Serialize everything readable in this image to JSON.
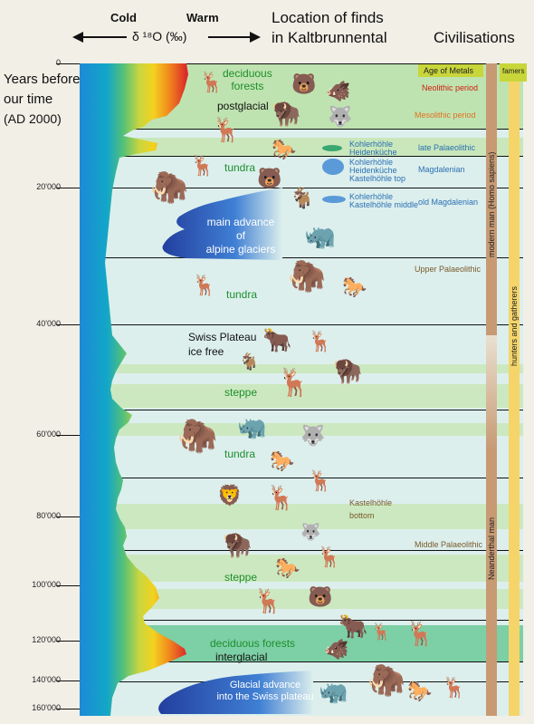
{
  "header": {
    "cold": "Cold",
    "warm": "Warm",
    "isotope": "δ ¹⁸O (‰)",
    "location_line1": "Location of finds",
    "location_line2": "in Kaltbrunnental",
    "civilisations": "Civilisations"
  },
  "y_axis": {
    "title_line1": "Years before",
    "title_line2": "our time",
    "title_line3": "(AD 2000)",
    "ticks": [
      "0",
      "20'000",
      "40'000",
      "60'000",
      "80'000",
      "100'000",
      "120'000",
      "140'000",
      "160'000"
    ]
  },
  "vegetation": {
    "deciduous_forests": "deciduous\nforests",
    "postglacial": "postglacial",
    "tundra1": "tundra",
    "tundra2": "tundra",
    "swiss_plateau": "Swiss Plateau\nice free",
    "steppe1": "steppe",
    "tundra3": "tundra",
    "steppe2": "steppe",
    "deciduous_forests2": "deciduous forests",
    "interglacial": "interglacial"
  },
  "glaciers": {
    "main_advance": "main advance\nof\nalpine glaciers",
    "glacial_advance": "Glacial advance\ninto the Swiss plateau"
  },
  "sites": {
    "s1": "Kohlerhöhle\nHeidenküche",
    "s2": "Kohlerhöhle\nHeidenküche\nKastelhöhle top",
    "s3": "Kohlerhöhle\nKastelhöhle middle",
    "s4": "Kastelhöhle\nbottom"
  },
  "cultures": {
    "age_of_metals": "Age of Metals",
    "neolithic": "Neolithic period",
    "mesolithic": "Mesolithic period",
    "late_palaeolithic": "late Palaeolithic",
    "magdalenian": "Magdalenian",
    "old_magdalenian": "old Magdalenian",
    "upper_palaeolithic": "Upper Palaeolithic",
    "middle_palaeolithic": "Middle Palaeolithic"
  },
  "civilisations": {
    "farmers": "famers",
    "modern_man": "modern man (Homo sapiens)",
    "hunters": "hunters and gatherers",
    "neanderthal": "Neanderthal man"
  },
  "colors": {
    "warm_band": "#bfe3b0",
    "cold_band": "#d7ecea",
    "ice_blue": "#1d8ad6",
    "glacier": "#2b57b5"
  }
}
